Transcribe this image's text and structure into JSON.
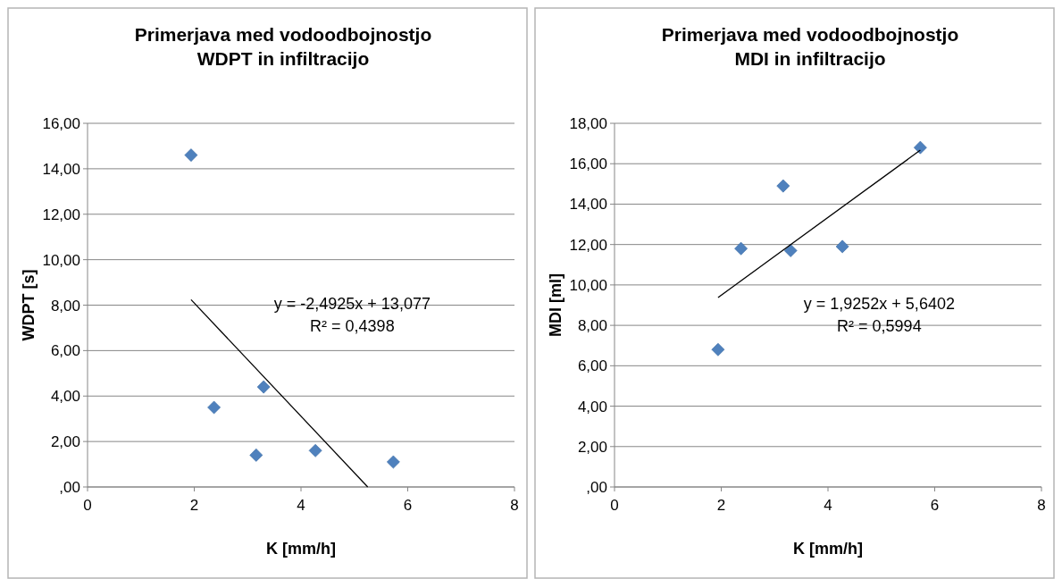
{
  "chart_data": [
    {
      "type": "scatter",
      "title": "Primerjava med vodoodbojnostjo\nWDPT in infiltracijo",
      "xlabel": "K [mm/h]",
      "ylabel": "WDPT [s]",
      "xlim": [
        0,
        8
      ],
      "xticks": [
        0,
        2,
        4,
        6,
        8
      ],
      "ylim": [
        0,
        16
      ],
      "yticks": [
        {
          "value": 0,
          "label": ",00"
        },
        {
          "value": 2,
          "label": "2,00"
        },
        {
          "value": 4,
          "label": "4,00"
        },
        {
          "value": 6,
          "label": "6,00"
        },
        {
          "value": 8,
          "label": "8,00"
        },
        {
          "value": 10,
          "label": "10,00"
        },
        {
          "value": 12,
          "label": "12,00"
        },
        {
          "value": 14,
          "label": "14,00"
        },
        {
          "value": 16,
          "label": "16,00"
        }
      ],
      "grid": "y",
      "series": [
        {
          "color": "#4f81bd",
          "marker": "diamond",
          "x": [
            1.94,
            2.37,
            3.16,
            3.3,
            4.27,
            5.73
          ],
          "values": [
            14.6,
            3.5,
            1.4,
            4.4,
            1.6,
            1.1
          ]
        },
        {
          "type": "line",
          "marker": "none",
          "color": "#000000",
          "x": [
            1.94,
            5.25
          ],
          "values": [
            8.24,
            0
          ]
        }
      ],
      "annotations": [
        "y = -2,4925x + 13,077",
        "R² = 0,4398"
      ]
    },
    {
      "type": "scatter",
      "title": "Primerjava med vodoodbojnostjo\nMDI in infiltracijo",
      "xlabel": "K [mm/h]",
      "ylabel": "MDI [ml]",
      "xlim": [
        0,
        8
      ],
      "xticks": [
        0,
        2,
        4,
        6,
        8
      ],
      "ylim": [
        0,
        18
      ],
      "yticks": [
        {
          "value": 0,
          "label": ",00"
        },
        {
          "value": 2,
          "label": "2,00"
        },
        {
          "value": 4,
          "label": "4,00"
        },
        {
          "value": 6,
          "label": "6,00"
        },
        {
          "value": 8,
          "label": "8,00"
        },
        {
          "value": 10,
          "label": "10,00"
        },
        {
          "value": 12,
          "label": "12,00"
        },
        {
          "value": 14,
          "label": "14,00"
        },
        {
          "value": 16,
          "label": "16,00"
        },
        {
          "value": 18,
          "label": "18,00"
        }
      ],
      "grid": "y",
      "series": [
        {
          "color": "#4f81bd",
          "marker": "diamond",
          "x": [
            1.94,
            2.37,
            3.16,
            3.3,
            4.27,
            5.73
          ],
          "values": [
            6.8,
            11.8,
            14.9,
            11.7,
            11.9,
            16.8
          ]
        },
        {
          "type": "line",
          "marker": "none",
          "color": "#000000",
          "x": [
            1.94,
            5.73
          ],
          "values": [
            9.38,
            16.67
          ]
        }
      ],
      "annotations": [
        "y = 1,9252x + 5,6402",
        "R² = 0,5994"
      ]
    }
  ]
}
